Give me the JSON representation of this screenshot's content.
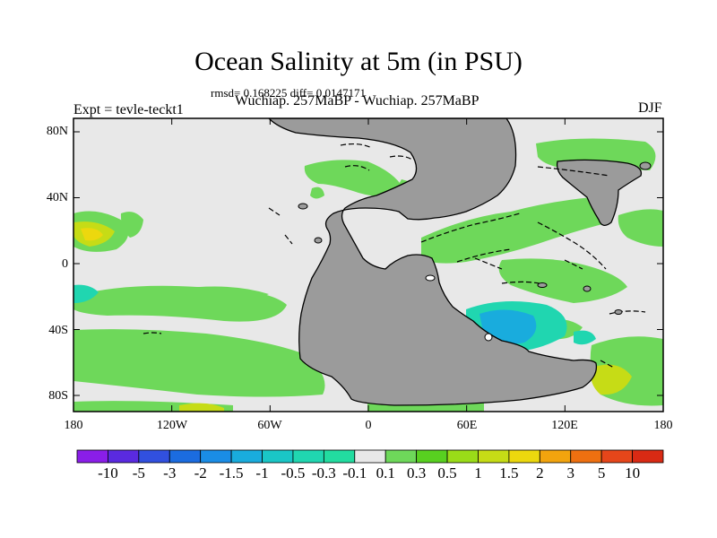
{
  "title": "Ocean Salinity at 5m (in PSU)",
  "stats": "rmsd= 0.168225 diff= 0.0147171",
  "comparison": "Wuchiap. 257MaBP - Wuchiap. 257MaBP",
  "experiment": "Expt = tevle-teckt1",
  "season": "DJF",
  "map": {
    "lat_ticks": [
      "80N",
      "40N",
      "0",
      "40S",
      "80S"
    ],
    "lon_ticks": [
      "180",
      "120W",
      "60W",
      "0",
      "60E",
      "120E",
      "180"
    ],
    "colors": {
      "land": "#9b9b9b",
      "ocean_neutral": "#e8e8e8",
      "frame": "#000000"
    }
  },
  "colorbar": {
    "labels": [
      "-10",
      "-5",
      "-3",
      "-2",
      "-1.5",
      "-1",
      "-0.5",
      "-0.3",
      "-0.1",
      "0.1",
      "0.3",
      "0.5",
      "1",
      "1.5",
      "2",
      "3",
      "5",
      "10"
    ],
    "colors": [
      "#8a1ee8",
      "#5a2ae0",
      "#3150df",
      "#1b6ce0",
      "#1a8de6",
      "#19acdd",
      "#1ac6c6",
      "#20d6b0",
      "#22dca0",
      "#e8e8e8",
      "#6ed85a",
      "#58d020",
      "#9adc18",
      "#c6dc16",
      "#ecd80e",
      "#f2a40e",
      "#ee7010",
      "#e6461a",
      "#d92a14"
    ]
  }
}
